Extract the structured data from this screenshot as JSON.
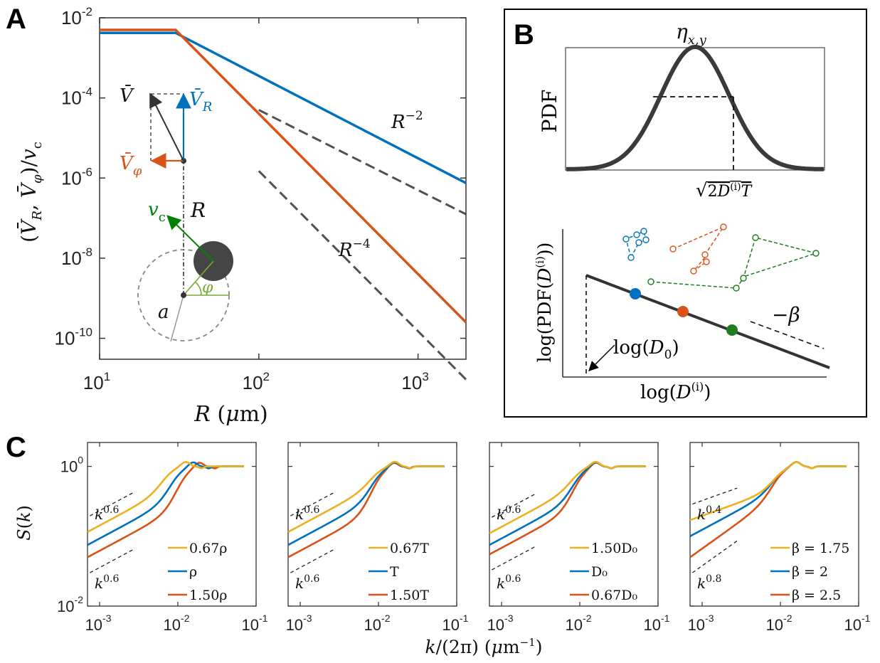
{
  "panel_labels": {
    "a": "A",
    "b": "B",
    "c": "C"
  },
  "chart_data": [
    {
      "panel": "A",
      "type": "line",
      "x_scale": "log",
      "y_scale": "log",
      "xlabel": "R (μm)",
      "ylabel": "(V̄_R, V̄_φ)/v_c",
      "xlim": [
        10,
        2000
      ],
      "ylim": [
        3e-11,
        0.01
      ],
      "x_ticks": [
        {
          "v": 10,
          "m": "10",
          "e": "1"
        },
        {
          "v": 100,
          "m": "10",
          "e": "2"
        },
        {
          "v": 1000,
          "m": "10",
          "e": "3"
        }
      ],
      "y_ticks": [
        {
          "v": 0.01,
          "m": "10",
          "e": "-2"
        },
        {
          "v": 0.0001,
          "m": "10",
          "e": "-4"
        },
        {
          "v": 1e-06,
          "m": "10",
          "e": "-6"
        },
        {
          "v": 1e-08,
          "m": "10",
          "e": "-8"
        },
        {
          "v": 1e-10,
          "m": "10",
          "e": "-10"
        }
      ],
      "series": [
        {
          "color": "#0072BD",
          "x": [
            10,
            30,
            2000
          ],
          "y": [
            0.0042,
            0.0042,
            7.5e-07
          ]
        },
        {
          "color": "#D95319",
          "x": [
            10,
            30,
            2000
          ],
          "y": [
            0.005,
            0.005,
            2.5e-10
          ]
        }
      ],
      "reference_lines": [
        {
          "label": "R^{-2}",
          "x": [
            100,
            2000
          ],
          "y": [
            5e-05,
            1.25e-07
          ]
        },
        {
          "label": "R^{-4}",
          "x": [
            100,
            2000
          ],
          "y": [
            1.5e-06,
            9.4e-12
          ]
        }
      ],
      "inset_labels": {
        "v_bar": "V̄",
        "v_r": "V̄_R",
        "v_phi": "V̄_φ",
        "v_c": "v_c",
        "r": "R",
        "a": "a",
        "phi": "φ"
      },
      "colors": {
        "v_r": "#0072BD",
        "v_phi": "#D95319",
        "v_c": "#008000",
        "phi": "#77AC30"
      }
    },
    {
      "panel": "B",
      "type": "schematic",
      "top": {
        "title": "η_{x,y}",
        "ylabel": "PDF",
        "width_label": "√(2D^{(i)}T)"
      },
      "bottom": {
        "xlabel": "log(D^{(i)})",
        "ylabel": "log(PDF(D^{(i)}))",
        "slope_label": "−β",
        "cutoff_label": "log(D₀)",
        "points": [
          {
            "color": "#0072BD"
          },
          {
            "color": "#D95319"
          },
          {
            "color": "#1E7D1E"
          }
        ]
      }
    },
    {
      "panel": "C",
      "type": "line",
      "x_scale": "log",
      "y_scale": "log",
      "xlabel": "k/(2π) (μm⁻¹)",
      "ylabel": "S(k)",
      "xlim": [
        0.0007,
        0.1
      ],
      "ylim": [
        0.01,
        2.2
      ],
      "x_ticks": [
        {
          "v": 0.001,
          "m": "10",
          "e": "-3"
        },
        {
          "v": 0.01,
          "m": "10",
          "e": "-2"
        },
        {
          "v": 0.1,
          "m": "10",
          "e": "-1"
        }
      ],
      "y_ticks": [
        {
          "v": 1,
          "m": "10",
          "e": "0"
        },
        {
          "v": 0.01,
          "m": "10",
          "e": "-2"
        }
      ],
      "subplots": [
        {
          "slope_labels": [
            {
              "base": "k",
              "exp": "0.6"
            },
            {
              "base": "k",
              "exp": "0.6"
            }
          ],
          "series": [
            {
              "name": "0.67ρ",
              "color": "#EDB120",
              "s0": 0.115,
              "peak_k": 0.0125,
              "slope": 0.6
            },
            {
              "name": "ρ",
              "color": "#0072BD",
              "s0": 0.075,
              "peak_k": 0.0155,
              "slope": 0.6
            },
            {
              "name": "1.50ρ",
              "color": "#D95319",
              "s0": 0.05,
              "peak_k": 0.0185,
              "slope": 0.6
            }
          ]
        },
        {
          "slope_labels": [
            {
              "base": "k",
              "exp": "0.6"
            },
            {
              "base": "k",
              "exp": "0.6"
            }
          ],
          "series": [
            {
              "name": "0.67T",
              "color": "#EDB120",
              "s0": 0.115,
              "peak_k": 0.016,
              "slope": 0.6
            },
            {
              "name": "T",
              "color": "#0072BD",
              "s0": 0.075,
              "peak_k": 0.0158,
              "slope": 0.6
            },
            {
              "name": "1.50T",
              "color": "#D95319",
              "s0": 0.05,
              "peak_k": 0.0155,
              "slope": 0.6
            }
          ]
        },
        {
          "slope_labels": [
            {
              "base": "k",
              "exp": "0.6"
            },
            {
              "base": "k",
              "exp": "0.6"
            }
          ],
          "series": [
            {
              "name": "1.50D₀",
              "color": "#EDB120",
              "s0": 0.11,
              "peak_k": 0.0158,
              "slope": 0.6
            },
            {
              "name": "D₀",
              "color": "#0072BD",
              "s0": 0.075,
              "peak_k": 0.0158,
              "slope": 0.6
            },
            {
              "name": "0.67D₀",
              "color": "#D95319",
              "s0": 0.055,
              "peak_k": 0.0158,
              "slope": 0.6
            }
          ]
        },
        {
          "slope_labels": [
            {
              "base": "k",
              "exp": "0.4"
            },
            {
              "base": "k",
              "exp": "0.8"
            }
          ],
          "series": [
            {
              "name": "β = 1.75",
              "color": "#EDB120",
              "s0": 0.17,
              "peak_k": 0.0158,
              "slope": 0.4
            },
            {
              "name": "β = 2",
              "color": "#0072BD",
              "s0": 0.1,
              "peak_k": 0.0158,
              "slope": 0.6
            },
            {
              "name": "β = 2.5",
              "color": "#D95319",
              "s0": 0.05,
              "peak_k": 0.0158,
              "slope": 0.8
            }
          ]
        }
      ]
    }
  ]
}
